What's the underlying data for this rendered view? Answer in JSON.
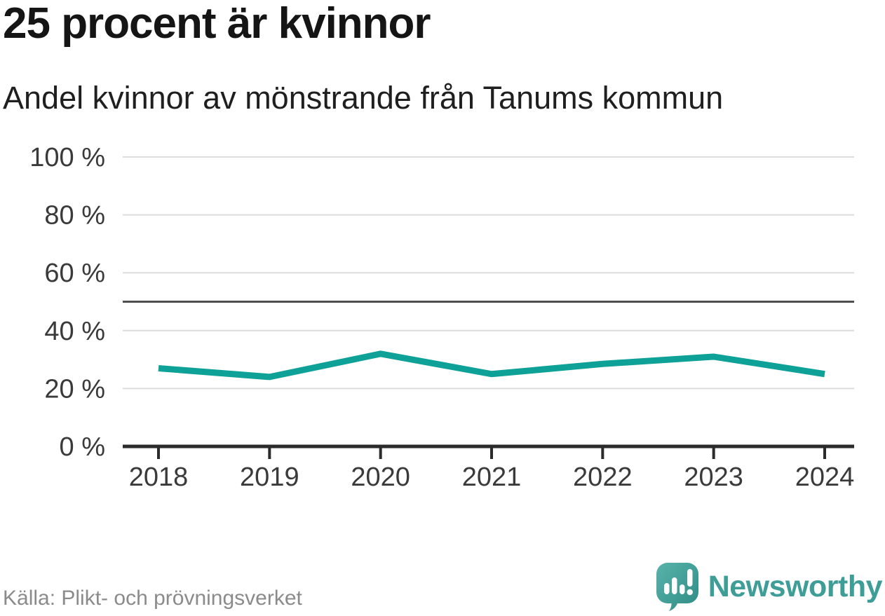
{
  "header": {
    "title": "25 procent är kvinnor",
    "subtitle": "Andel kvinnor av mönstrande från Tanums kommun"
  },
  "chart_data": {
    "type": "line",
    "title": "25 procent är kvinnor",
    "subtitle": "Andel kvinnor av mönstrande från Tanums kommun",
    "categories": [
      2018,
      2019,
      2020,
      2021,
      2022,
      2023,
      2024
    ],
    "series": [
      {
        "name": "Andel kvinnor av mönstrande",
        "values": [
          27,
          24,
          32,
          25,
          28.5,
          31,
          25
        ]
      }
    ],
    "unit": "%",
    "ylim": [
      0,
      100
    ],
    "yticks": [
      0,
      20,
      40,
      60,
      80,
      100
    ],
    "ytick_suffix": " %",
    "reference_line": 50,
    "grid": true,
    "legend": "none",
    "colors": {
      "line": "#0da198",
      "grid": "#dcdcdc",
      "reference": "#4f4f4f",
      "axis": "#2b2b2b",
      "tick_text": "#3a3a3a"
    }
  },
  "footer": {
    "source": "Källa: Plikt- och prövningsverket"
  },
  "branding": {
    "wordmark": "Newsworthy",
    "icon": "newsworthy-logo-icon",
    "color": "#3e9e97",
    "icon_gradient": [
      "#58b4ab",
      "#2e8b84"
    ]
  }
}
